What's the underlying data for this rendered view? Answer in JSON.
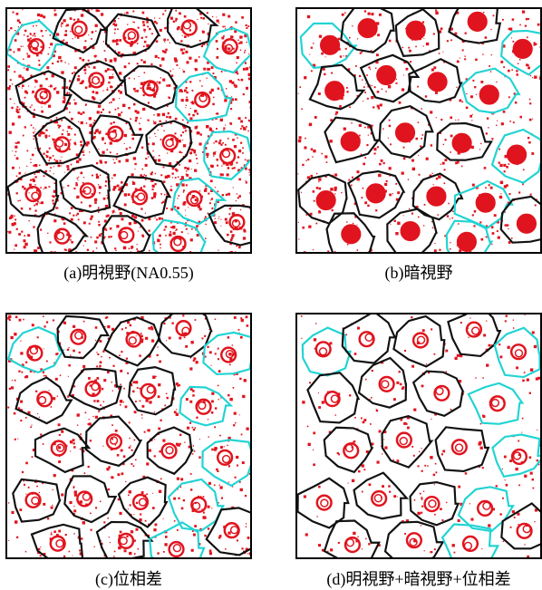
{
  "figure": {
    "panels": [
      {
        "id": "a",
        "caption": "(a)明視野(NA0.55)",
        "style": "dense-red"
      },
      {
        "id": "b",
        "caption": "(b)暗視野",
        "style": "nuclei-red"
      },
      {
        "id": "c",
        "caption": "(c)位相差",
        "style": "medium-red"
      },
      {
        "id": "d",
        "caption": "(d)明視野+暗視野+位相差",
        "style": "sparse-red"
      }
    ],
    "colors": {
      "boundary": "#111111",
      "boundary_alt": "#22d3d3",
      "speckle": "#e0141e",
      "background": "#ffffff"
    }
  }
}
